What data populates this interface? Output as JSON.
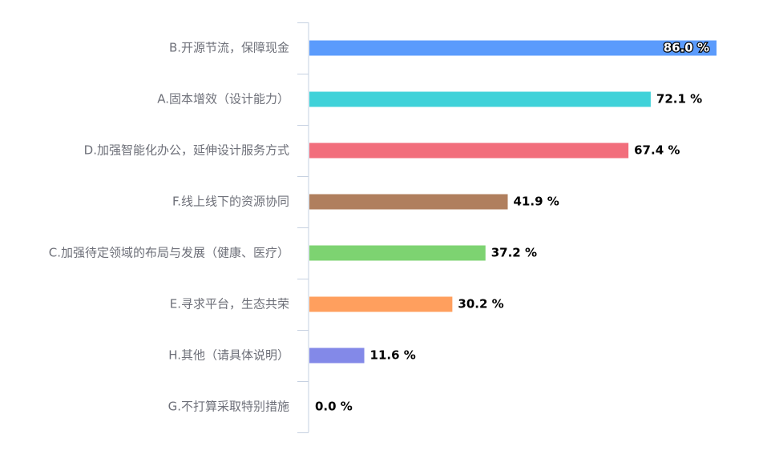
{
  "chart_data": {
    "type": "bar",
    "orientation": "horizontal",
    "categories": [
      "B.开源节流，保障现金",
      "A.固本增效（设计能力）",
      "D.加强智能化办公，延伸设计服务方式",
      "F.线上线下的资源协同",
      "C.加强待定领域的布局与发展（健康、医疗）",
      "E.寻求平台，生态共荣",
      "H.其他（请具体说明）",
      "G.不打算采取特别措施"
    ],
    "values": [
      86.0,
      72.1,
      67.4,
      41.9,
      37.2,
      30.2,
      11.6,
      0.0
    ],
    "value_labels": [
      "86.0 %",
      "72.1 %",
      "67.4 %",
      "41.9 %",
      "37.2 %",
      "30.2 %",
      "11.6 %",
      "0.0 %"
    ],
    "colors": [
      "#5b9bfc",
      "#3fd2d9",
      "#f26e7c",
      "#b07f5e",
      "#7dd371",
      "#ff9f5e",
      "#8389e8",
      "#6dbbb8"
    ],
    "xlim": [
      0,
      86.0
    ],
    "grid": false,
    "legend": "none",
    "title": "",
    "xlabel": "",
    "ylabel": "",
    "axis_color": "#c6d1e1"
  }
}
